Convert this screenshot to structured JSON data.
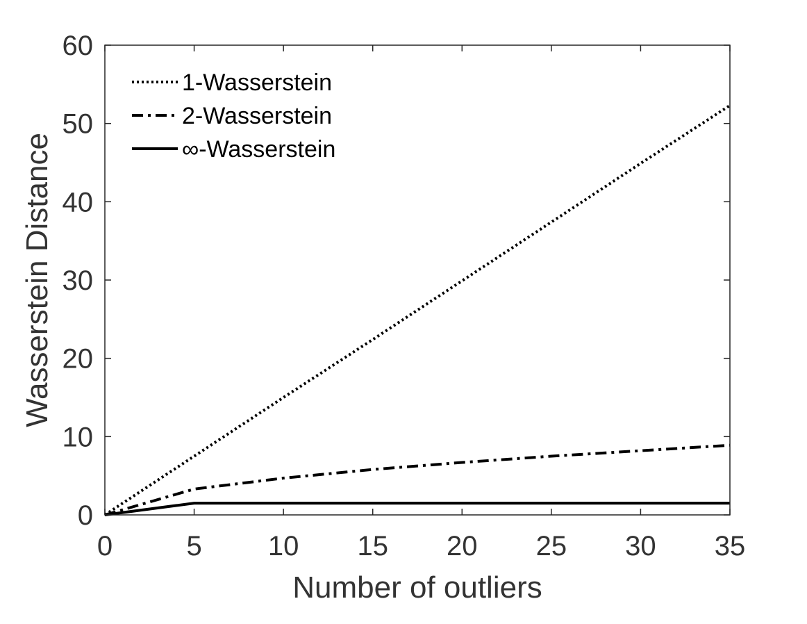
{
  "chart_data": {
    "type": "line",
    "title": "",
    "xlabel": "Number of outliers",
    "ylabel": "Wasserstein Distance",
    "xlim": [
      0,
      35
    ],
    "ylim": [
      0,
      60
    ],
    "xticks": [
      0,
      5,
      10,
      15,
      20,
      25,
      30,
      35
    ],
    "yticks": [
      0,
      10,
      20,
      30,
      40,
      50,
      60
    ],
    "x": [
      0,
      5,
      10,
      15,
      20,
      25,
      30,
      35
    ],
    "grid": false,
    "legend_position": "top-left",
    "series": [
      {
        "name": "1-Wasserstein",
        "style": "dotted",
        "values": [
          0,
          7.5,
          15,
          22.4,
          29.9,
          37.4,
          44.9,
          52.3
        ]
      },
      {
        "name": "2-Wasserstein",
        "style": "dash-dot",
        "values": [
          0,
          3.3,
          4.7,
          5.8,
          6.7,
          7.5,
          8.2,
          8.9
        ]
      },
      {
        "name": "∞-Wasserstein",
        "style": "solid",
        "values": [
          0,
          1.5,
          1.5,
          1.5,
          1.5,
          1.5,
          1.5,
          1.5
        ]
      }
    ],
    "colors": {
      "line": "#000000",
      "axis": "#262626",
      "text": "#333333"
    }
  }
}
